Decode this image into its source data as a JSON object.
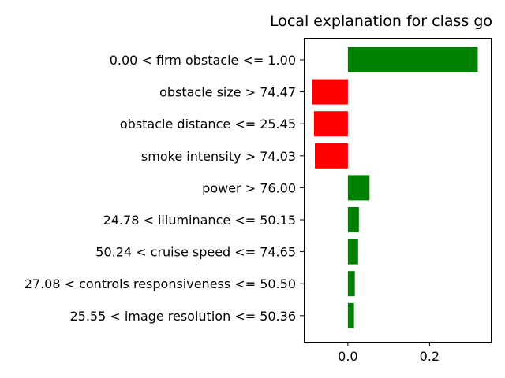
{
  "chart_data": {
    "type": "bar",
    "orientation": "horizontal",
    "title": "Local explanation for class go",
    "xlabel": "",
    "ylabel": "",
    "xlim": [
      -0.108,
      0.35
    ],
    "xticks": [
      0.0,
      0.2
    ],
    "xtick_labels": [
      "0.0",
      "0.2"
    ],
    "grid": false,
    "positive_color": "#008000",
    "negative_color": "#ff0000",
    "categories": [
      "0.00 < firm obstacle <= 1.00",
      "obstacle size > 74.47",
      "obstacle distance <= 25.45",
      "smoke intensity > 74.03",
      "power > 76.00",
      "24.78 < illuminance <= 50.15",
      "50.24 < cruise speed <= 74.65",
      "27.08 < controls responsiveness <= 50.50",
      "25.55 < image resolution <= 50.36"
    ],
    "values": [
      0.318,
      -0.087,
      -0.083,
      -0.081,
      0.053,
      0.027,
      0.025,
      0.017,
      0.015
    ]
  }
}
